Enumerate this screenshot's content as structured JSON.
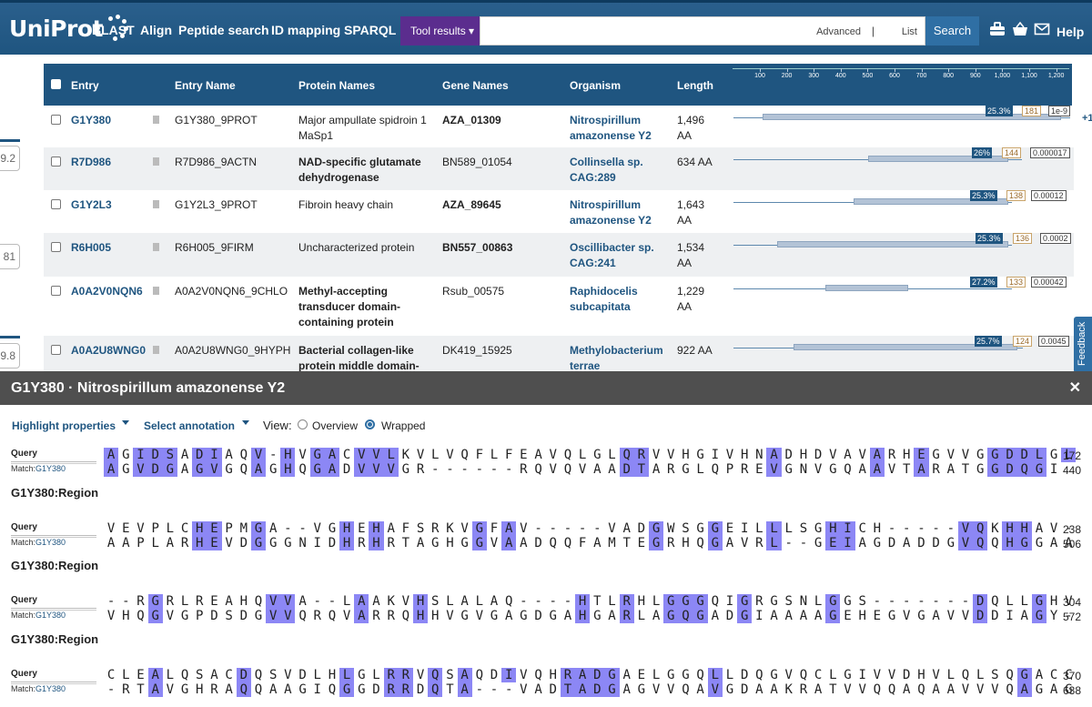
{
  "header": {
    "logo": "UniProt",
    "nav": [
      "BLAST",
      "Align",
      "Peptide search",
      "ID mapping",
      "SPARQL"
    ],
    "tool_results": "Tool results",
    "search_placeholder": "",
    "advanced": "Advanced",
    "list": "List",
    "search_button": "Search",
    "help": "Help",
    "icons": [
      "toolbox-icon",
      "basket-icon",
      "mail-icon"
    ]
  },
  "side_values": [
    "9.2",
    "81",
    "9.8"
  ],
  "table": {
    "columns": [
      "Entry",
      "Entry Name",
      "Protein Names",
      "Gene Names",
      "Organism",
      "Length"
    ],
    "ruler_ticks": [
      "100",
      "200",
      "300",
      "400",
      "500",
      "600",
      "700",
      "800",
      "900",
      "1,000",
      "1,100",
      "1,200"
    ],
    "extra_hits": "+1",
    "rows": [
      {
        "entry": "G1Y380",
        "entry_name": "G1Y380_9PROT",
        "protein": [
          "Major ampullate spidroin 1",
          "MaSp1"
        ],
        "protein_bold": false,
        "gene": "AZA_01309",
        "gene_bold": true,
        "organism": [
          "Nitrospirillum",
          "amazonense Y2"
        ],
        "length": [
          "1,496",
          "AA"
        ],
        "identity": "25.3%",
        "score": "181",
        "evalue": "1e-9"
      },
      {
        "entry": "R7D986",
        "entry_name": "R7D986_9ACTN",
        "protein": [
          "NAD-specific glutamate",
          "dehydrogenase"
        ],
        "protein_bold": true,
        "gene": "BN589_01054",
        "gene_bold": false,
        "organism": [
          "Collinsella sp.",
          "CAG:289"
        ],
        "length": [
          "634 AA",
          ""
        ],
        "identity": "26%",
        "score": "144",
        "evalue": "0.000017"
      },
      {
        "entry": "G1Y2L3",
        "entry_name": "G1Y2L3_9PROT",
        "protein": [
          "Fibroin heavy chain",
          ""
        ],
        "protein_bold": false,
        "gene": "AZA_89645",
        "gene_bold": true,
        "organism": [
          "Nitrospirillum",
          "amazonense Y2"
        ],
        "length": [
          "1,643",
          "AA"
        ],
        "identity": "25.3%",
        "score": "138",
        "evalue": "0.00012"
      },
      {
        "entry": "R6H005",
        "entry_name": "R6H005_9FIRM",
        "protein": [
          "Uncharacterized protein",
          ""
        ],
        "protein_bold": false,
        "gene": "BN557_00863",
        "gene_bold": true,
        "organism": [
          "Oscillibacter sp.",
          "CAG:241"
        ],
        "length": [
          "1,534",
          "AA"
        ],
        "identity": "25.3%",
        "score": "136",
        "evalue": "0.0002"
      },
      {
        "entry": "A0A2V0NQN6",
        "entry_name": "A0A2V0NQN6_9CHLO",
        "protein": [
          "Methyl-accepting",
          "transducer domain-",
          "containing protein"
        ],
        "protein_bold": true,
        "gene": "Rsub_00575",
        "gene_bold": false,
        "organism": [
          "Raphidocelis",
          "subcapitata"
        ],
        "length": [
          "1,229",
          "AA"
        ],
        "identity": "27.2%",
        "score": "133",
        "evalue": "0.00042"
      },
      {
        "entry": "A0A2U8WNG0",
        "entry_name": "A0A2U8WNG0_9HYPH",
        "protein": [
          "Bacterial collagen-like",
          "protein middle domain-"
        ],
        "protein_bold": true,
        "gene": "DK419_15925",
        "gene_bold": false,
        "organism": [
          "Methylobacterium",
          "terrae"
        ],
        "length": [
          "922 AA",
          ""
        ],
        "identity": "25.7%",
        "score": "124",
        "evalue": "0.0045"
      }
    ]
  },
  "feedback": "Feedback",
  "panel": {
    "title": "G1Y380 · Nitrospirillum amazonense Y2",
    "highlight": "Highlight properties",
    "select_annotation": "Select annotation",
    "view_label": "View:",
    "overview": "Overview",
    "wrapped": "Wrapped",
    "selected_view": "Wrapped"
  },
  "alignment": {
    "query_label": "Query",
    "match_label": "Match:",
    "match_id": "G1Y380",
    "region_label": "G1Y380:Region",
    "blocks": [
      {
        "query": "AGIDSADIAQV-HVGACVVLKVLVQFLFEAVQLGLQRVVHGIVHNADHDVAVARHEGVVGGDDLGL",
        "match": "AGVDGAGVGQAGHQGADVVVGR------RQVQVAADTARGLQPREVGNVGQAAVTARATGGDQGI",
        "q_end": "172",
        "m_end": "440",
        "highlight": "HLHHHLHHLLHLHLHHLHHHLLLLLLLLLLLLLLLHHLLLLLLLLHLLLLLLHLLHLLLLHHHHLH"
      },
      {
        "query": "VEVPLCHEPMGA--VGHEHAFSRKVGFAV-----VADGWSGGEILLLSGHICH-----VQKHHAV-",
        "match": "AAPLARHEVDGGGNIDHRHRTAGHGGVAADQQFAMTEGRHQGAVRL--GEIAGDADDGVQQHGGAA",
        "q_end": "238",
        "m_end": "506",
        "highlight": "LLLLLLHHLLHLLLLLHLHLLLLLLHLHLLLLLLLLLHLLLHLLLHLLLHHLLLLLLLHHLHHLLL"
      },
      {
        "query": "--RGRLREAHQVVA--LAAKVHSLALAQ----HTLRHLGGGQIGRGSNLGGS-------DQLLGHV",
        "match": "VHQGVGPDSDGVVQRQVARRQHHVGVGAGDGAHGARLAGQGADGIAAAAGEHEGVGAVVDDIAGY-",
        "q_end": "304",
        "m_end": "572",
        "highlight": "LLLHLLLLLLLHHLLLLHLLLHLLLLLLLLLLHLLHLLHHHLLHLLLLLHLLLLLLLLLHLLLHLL"
      },
      {
        "query": "CLEALQSACDQSVDLHLGLRRVQSAQDIVQHRADGAELGGQLLDQGVQCLGIVVDHVLQLSQGACC",
        "match": "-RTAVGHRAQQAAGIQGGDRRDQTA---VADTADGAGVVQAVGDAAKRATVVQQAQAAVVVQAGAG",
        "q_end": "370",
        "m_end": "638",
        "highlight": "LLLHLLLLLHLLLLLLHLLHHLHLHLLHLLLHHHHLLLLLLHLLLLLLLLLLLLLLLLLLLLHLLL"
      }
    ]
  },
  "colors": {
    "header_blue": "#1f5580",
    "tool_purple": "#5b2d8e",
    "highlight_strong": "#8c87f5",
    "highlight_light": "#c8c5fb",
    "panel_title_bg": "#4f4f4f"
  }
}
